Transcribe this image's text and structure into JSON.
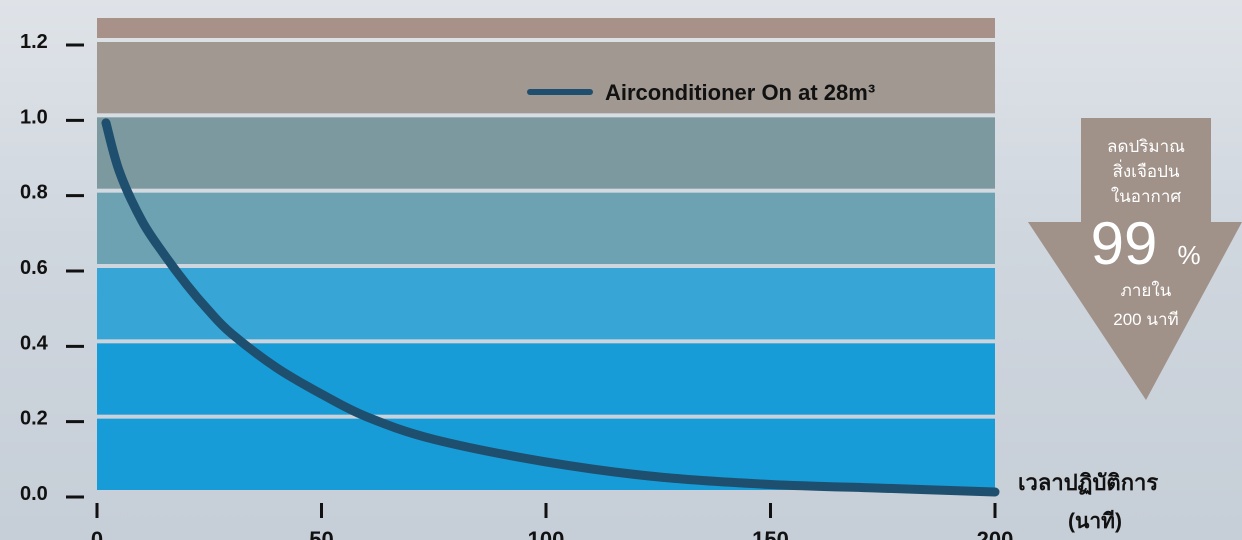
{
  "chart_data": {
    "type": "line",
    "title": "",
    "xlabel": "เวลาปฏิบัติการ",
    "xunit": "(นาที)",
    "ylabel": "",
    "xlim": [
      0,
      200
    ],
    "ylim": [
      0,
      1.2
    ],
    "x_ticks": [
      0,
      50,
      100,
      150,
      200
    ],
    "y_ticks": [
      0.0,
      0.2,
      0.4,
      0.6,
      0.8,
      1.0,
      1.2
    ],
    "y_tick_labels": [
      "0.0",
      "0.2",
      "0.4",
      "0.6",
      "0.8",
      "1.0",
      "1.2"
    ],
    "grid": "horizontal",
    "legend": "top-right",
    "series": [
      {
        "name": "Airconditioner On at 28m³",
        "color": "#1f4f6e",
        "x": [
          2,
          5,
          10,
          15,
          20,
          25,
          30,
          40,
          50,
          60,
          75,
          100,
          125,
          150,
          175,
          200
        ],
        "values": [
          0.98,
          0.85,
          0.72,
          0.63,
          0.55,
          0.48,
          0.42,
          0.33,
          0.26,
          0.2,
          0.14,
          0.08,
          0.04,
          0.02,
          0.01,
          0.0
        ]
      }
    ],
    "band_colors": [
      "#179cd8",
      "#179cd8",
      "#37a6d6",
      "#6ca2b2",
      "#7c999f",
      "#a09891",
      "#a89189"
    ]
  },
  "callout": {
    "line1": "ลดปริมาณ",
    "line2": "สิ่งเจือปน",
    "line3": "ในอากาศ",
    "percent_value": "99",
    "percent_sign": "%",
    "line4": "ภายใน",
    "line5": "200 นาที",
    "color": "#a09189"
  }
}
